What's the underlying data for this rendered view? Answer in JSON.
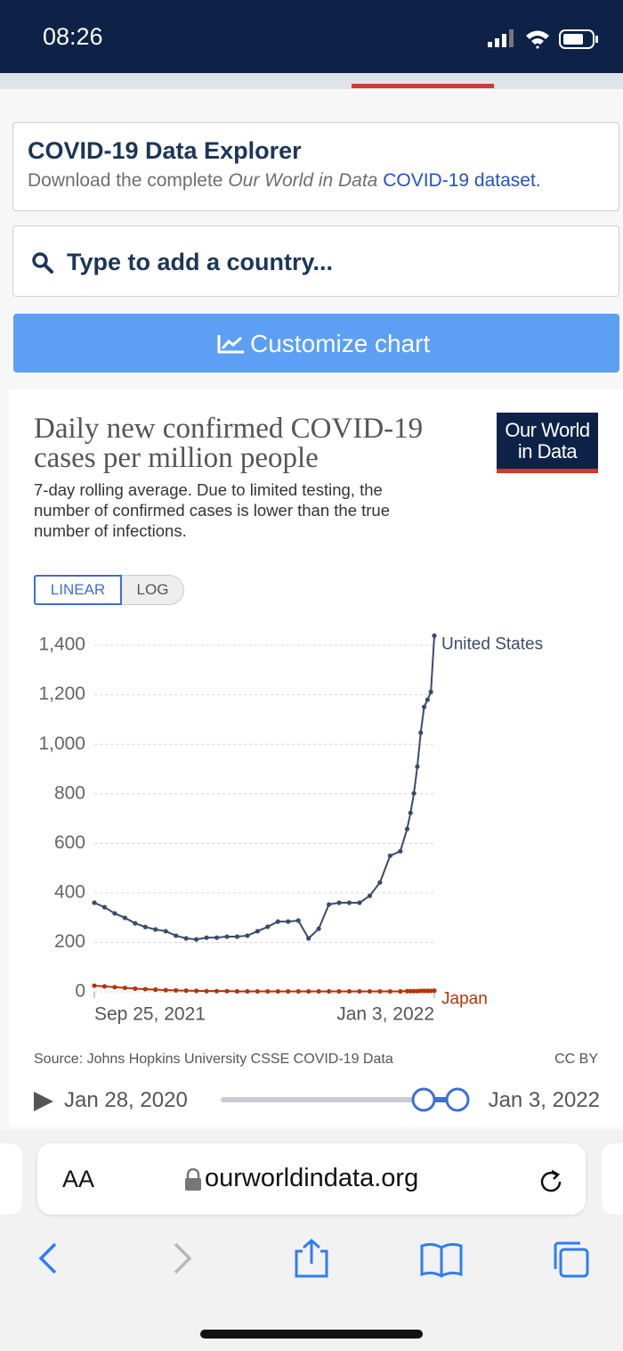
{
  "status_bar": {
    "time": "08:26"
  },
  "header": {
    "title": "COVID-19 Data Explorer",
    "subtitle_prefix": "Download the complete",
    "subtitle_italic": "Our World in Data",
    "subtitle_link": "COVID-19 dataset."
  },
  "search": {
    "placeholder": "Type to add a country..."
  },
  "customize_button": "Customize chart",
  "logo": [
    "Our World",
    "in Data"
  ],
  "scale_toggle": [
    "LINEAR",
    "LOG"
  ],
  "chart_data": {
    "type": "line",
    "title": "Daily new confirmed COVID-19 cases per million people",
    "subtitle": "7-day rolling average. Due to limited testing, the number of confirmed cases is lower than the true number of infections.",
    "x": [
      "2021-09-25",
      "2021-09-28",
      "2021-10-01",
      "2021-10-04",
      "2021-10-07",
      "2021-10-10",
      "2021-10-13",
      "2021-10-16",
      "2021-10-19",
      "2021-10-22",
      "2021-10-25",
      "2021-10-28",
      "2021-10-31",
      "2021-11-03",
      "2021-11-06",
      "2021-11-09",
      "2021-11-12",
      "2021-11-15",
      "2021-11-18",
      "2021-11-21",
      "2021-11-24",
      "2021-11-27",
      "2021-11-30",
      "2021-12-03",
      "2021-12-06",
      "2021-12-09",
      "2021-12-12",
      "2021-12-15",
      "2021-12-18",
      "2021-12-21",
      "2021-12-24",
      "2021-12-26",
      "2021-12-27",
      "2021-12-28",
      "2021-12-29",
      "2021-12-30",
      "2021-12-31",
      "2022-01-01",
      "2022-01-02",
      "2022-01-03"
    ],
    "series": [
      {
        "name": "United States",
        "color": "#3c4a6a",
        "values": [
          360,
          342,
          317,
          299,
          277,
          262,
          252,
          245,
          227,
          216,
          212,
          219,
          219,
          223,
          223,
          227,
          245,
          263,
          284,
          284,
          288,
          216,
          255,
          353,
          360,
          360,
          360,
          388,
          442,
          550,
          568,
          658,
          723,
          802,
          910,
          1047,
          1151,
          1180,
          1212,
          1439
        ]
      },
      {
        "name": "Japan",
        "color": "#b13507",
        "values": [
          25,
          22,
          19,
          16,
          13,
          11,
          9,
          7,
          6,
          5,
          4,
          3,
          3,
          3,
          2,
          2,
          2,
          2,
          2,
          2,
          2,
          2,
          2,
          2,
          2,
          2,
          2,
          2,
          2,
          2,
          2,
          3,
          3,
          3,
          3,
          4,
          4,
          4,
          4,
          5
        ]
      }
    ],
    "xlim": [
      "2021-09-25",
      "2022-01-03"
    ],
    "xticks": [
      {
        "value": "2021-09-25",
        "label": "Sep 25, 2021"
      },
      {
        "value": "2022-01-03",
        "label": "Jan 3, 2022"
      }
    ],
    "ylim": [
      0,
      1440
    ],
    "yticks": [
      0,
      200,
      400,
      600,
      800,
      {
        "value": 1000,
        "label": "1,000"
      },
      {
        "value": 1200,
        "label": "1,200"
      },
      {
        "value": 1400,
        "label": "1,400"
      }
    ],
    "grid": true,
    "source": "Source: Johns Hopkins University CSSE COVID-19 Data",
    "license": "CC BY"
  },
  "timeline": {
    "start": "Jan 28, 2020",
    "end": "Jan 3, 2022"
  },
  "browser": {
    "text_size": "AA",
    "url": "ourworldindata.org"
  }
}
